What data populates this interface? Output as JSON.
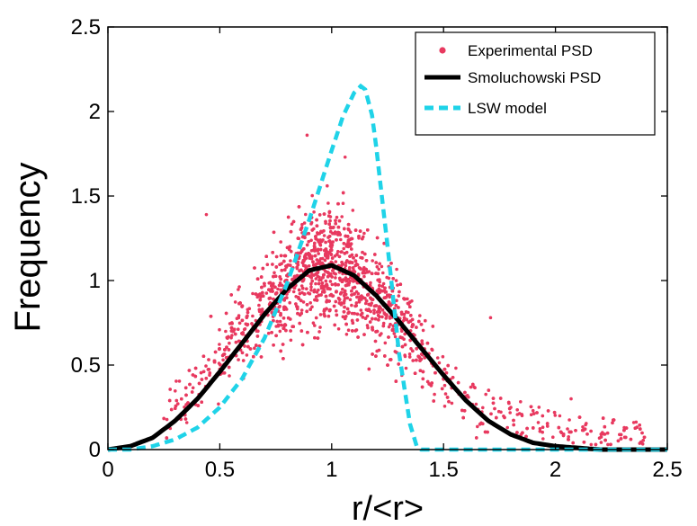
{
  "chart_data": {
    "type": "scatter",
    "title": "",
    "xlabel": "r/<r>",
    "ylabel": "Frequency",
    "xlim": [
      0,
      2.5
    ],
    "ylim": [
      0,
      2.5
    ],
    "x_ticks": [
      "0",
      "0.5",
      "1",
      "1.5",
      "2",
      "2.5"
    ],
    "y_ticks": [
      "0",
      "0.5",
      "1",
      "1.5",
      "2",
      "2.5"
    ],
    "legend_position": "top-right",
    "grid": false,
    "series": [
      {
        "name": "Experimental PSD",
        "kind": "scatter",
        "color": "#e8395f",
        "point_cloud": {
          "x_range": [
            0.25,
            2.4
          ],
          "density": "dense, centered near r/<r> = 1, spread roughly ±0.4 around the Smoluchowski curve",
          "outliers": [
            {
              "x": 0.44,
              "y": 1.39
            },
            {
              "x": 0.89,
              "y": 1.86
            },
            {
              "x": 1.06,
              "y": 1.73
            },
            {
              "x": 0.98,
              "y": 1.56
            },
            {
              "x": 1.71,
              "y": 0.78
            },
            {
              "x": 2.07,
              "y": 0.3
            },
            {
              "x": 2.35,
              "y": 0.16
            }
          ]
        }
      },
      {
        "name": "Smoluchowski PSD",
        "kind": "line",
        "color": "#000000",
        "x": [
          0.0,
          0.1,
          0.2,
          0.3,
          0.4,
          0.5,
          0.6,
          0.7,
          0.8,
          0.9,
          1.0,
          1.1,
          1.2,
          1.3,
          1.4,
          1.5,
          1.6,
          1.7,
          1.8,
          1.9,
          2.0,
          2.1,
          2.2,
          2.3,
          2.4,
          2.5
        ],
        "y": [
          0.0,
          0.02,
          0.07,
          0.17,
          0.3,
          0.46,
          0.63,
          0.8,
          0.95,
          1.06,
          1.09,
          1.03,
          0.91,
          0.76,
          0.6,
          0.44,
          0.29,
          0.17,
          0.09,
          0.04,
          0.02,
          0.01,
          0.0,
          0.0,
          0.0,
          0.0
        ]
      },
      {
        "name": "LSW model",
        "kind": "line",
        "style": "dashed",
        "color": "#1fd3e8",
        "x": [
          0.0,
          0.1,
          0.2,
          0.3,
          0.4,
          0.5,
          0.6,
          0.7,
          0.8,
          0.9,
          1.0,
          1.05,
          1.1,
          1.13,
          1.15,
          1.18,
          1.2,
          1.25,
          1.3,
          1.35,
          1.38,
          1.4,
          1.5,
          2.0,
          2.5
        ],
        "y": [
          0.0,
          0.0,
          0.02,
          0.06,
          0.13,
          0.25,
          0.42,
          0.66,
          0.98,
          1.36,
          1.77,
          1.97,
          2.11,
          2.15,
          2.13,
          1.98,
          1.78,
          1.2,
          0.58,
          0.15,
          0.02,
          0.0,
          0.0,
          0.0,
          0.0
        ]
      }
    ]
  }
}
